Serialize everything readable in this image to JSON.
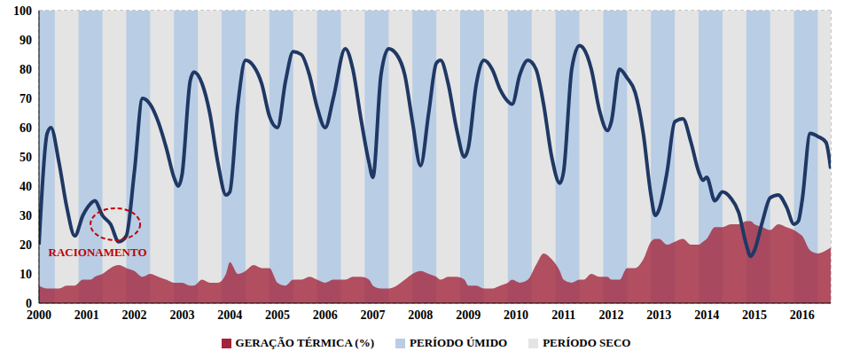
{
  "chart_data": {
    "type": "line",
    "legend": "bottom",
    "grid": true,
    "xlim": [
      2000,
      2016.6
    ],
    "xticks": [
      2000,
      2001,
      2002,
      2003,
      2004,
      2005,
      2006,
      2007,
      2008,
      2009,
      2010,
      2011,
      2012,
      2013,
      2014,
      2015,
      2016
    ],
    "ylim": [
      0,
      100
    ],
    "yticks": [
      0,
      10,
      20,
      30,
      40,
      50,
      60,
      70,
      80,
      90,
      100
    ],
    "x": [
      2000.0,
      2000.17,
      2000.25,
      2000.42,
      2000.58,
      2000.75,
      2000.92,
      2001.08,
      2001.17,
      2001.33,
      2001.5,
      2001.67,
      2001.83,
      2002.0,
      2002.17,
      2002.33,
      2002.5,
      2002.67,
      2002.83,
      2002.92,
      2003.0,
      2003.17,
      2003.25,
      2003.42,
      2003.58,
      2003.75,
      2003.92,
      2004.0,
      2004.17,
      2004.33,
      2004.5,
      2004.67,
      2004.83,
      2005.0,
      2005.17,
      2005.33,
      2005.5,
      2005.67,
      2005.83,
      2006.0,
      2006.17,
      2006.42,
      2006.58,
      2006.75,
      2006.92,
      2007.0,
      2007.17,
      2007.33,
      2007.5,
      2007.67,
      2007.83,
      2008.0,
      2008.17,
      2008.33,
      2008.42,
      2008.58,
      2008.75,
      2008.92,
      2009.0,
      2009.17,
      2009.33,
      2009.5,
      2009.67,
      2009.83,
      2009.92,
      2010.08,
      2010.25,
      2010.42,
      2010.58,
      2010.75,
      2010.92,
      2011.0,
      2011.17,
      2011.33,
      2011.42,
      2011.58,
      2011.75,
      2011.92,
      2012.0,
      2012.17,
      2012.33,
      2012.5,
      2012.67,
      2012.83,
      2012.92,
      2013.0,
      2013.17,
      2013.33,
      2013.5,
      2013.67,
      2013.83,
      2013.92,
      2014.0,
      2014.17,
      2014.33,
      2014.5,
      2014.67,
      2014.83,
      2014.92,
      2015.0,
      2015.17,
      2015.33,
      2015.5,
      2015.67,
      2015.83,
      2015.92,
      2016.0,
      2016.17,
      2016.33,
      2016.5,
      2016.6
    ],
    "series": [
      {
        "name": "GERAÇÃO TÉRMICA (%)",
        "type": "area",
        "color": "#a3243b",
        "values": [
          6,
          5,
          5,
          5,
          6,
          6,
          8,
          8,
          9,
          10,
          12,
          13,
          12,
          11,
          9,
          10,
          9,
          8,
          7,
          7,
          7,
          6,
          6,
          8,
          7,
          7,
          10,
          14,
          10,
          11,
          13,
          12,
          12,
          7,
          6,
          8,
          8,
          9,
          8,
          7,
          8,
          8,
          9,
          9,
          8,
          6,
          5,
          5,
          6,
          8,
          10,
          11,
          10,
          9,
          8,
          9,
          9,
          8,
          6,
          6,
          5,
          5,
          6,
          7,
          8,
          7,
          8,
          13,
          17,
          15,
          11,
          8,
          7,
          8,
          8,
          10,
          9,
          9,
          8,
          8,
          12,
          12,
          15,
          21,
          22,
          22,
          20,
          21,
          22,
          20,
          20,
          21,
          22,
          26,
          26,
          27,
          27,
          28,
          28,
          27,
          26,
          25,
          27,
          26,
          25,
          24,
          23,
          18,
          17,
          18,
          19
        ]
      },
      {
        "type": "line",
        "color": "#1f3864",
        "values": [
          20,
          58,
          60,
          48,
          33,
          23,
          30,
          34,
          35,
          30,
          27,
          21,
          23,
          45,
          70,
          68,
          62,
          53,
          43,
          40,
          44,
          76,
          79,
          75,
          65,
          48,
          37,
          38,
          68,
          83,
          81,
          75,
          64,
          60,
          76,
          86,
          85,
          78,
          67,
          60,
          70,
          87,
          80,
          63,
          48,
          43,
          78,
          87,
          85,
          78,
          62,
          47,
          65,
          82,
          83,
          75,
          60,
          50,
          53,
          75,
          83,
          80,
          73,
          69,
          68,
          78,
          83,
          80,
          68,
          50,
          41,
          45,
          80,
          88,
          87,
          80,
          66,
          59,
          62,
          80,
          77,
          72,
          58,
          37,
          30,
          32,
          45,
          62,
          63,
          55,
          45,
          42,
          43,
          35,
          38,
          36,
          31,
          20,
          16,
          18,
          28,
          36,
          37,
          33,
          27,
          28,
          35,
          58,
          57,
          55,
          46
        ]
      }
    ],
    "wet_period": {
      "label": "PERÍODO ÚMIDO",
      "color": "#b9cde5",
      "ranges": [
        [
          2000.0,
          2000.33
        ],
        [
          2000.83,
          2001.33
        ],
        [
          2001.83,
          2002.33
        ],
        [
          2002.83,
          2003.33
        ],
        [
          2003.83,
          2004.33
        ],
        [
          2004.83,
          2005.33
        ],
        [
          2005.83,
          2006.33
        ],
        [
          2006.83,
          2007.33
        ],
        [
          2007.83,
          2008.33
        ],
        [
          2008.83,
          2009.33
        ],
        [
          2009.83,
          2010.33
        ],
        [
          2010.83,
          2011.33
        ],
        [
          2011.83,
          2012.33
        ],
        [
          2012.83,
          2013.33
        ],
        [
          2013.83,
          2014.33
        ],
        [
          2014.83,
          2015.33
        ],
        [
          2015.83,
          2016.33
        ]
      ]
    },
    "dry_period": {
      "label": "PERÍODO SECO",
      "color": "#e4e4e4"
    },
    "annotations": [
      {
        "text": "RACIONAMENTO",
        "x": 2001.6,
        "y": 27,
        "color": "#c00000"
      }
    ]
  }
}
